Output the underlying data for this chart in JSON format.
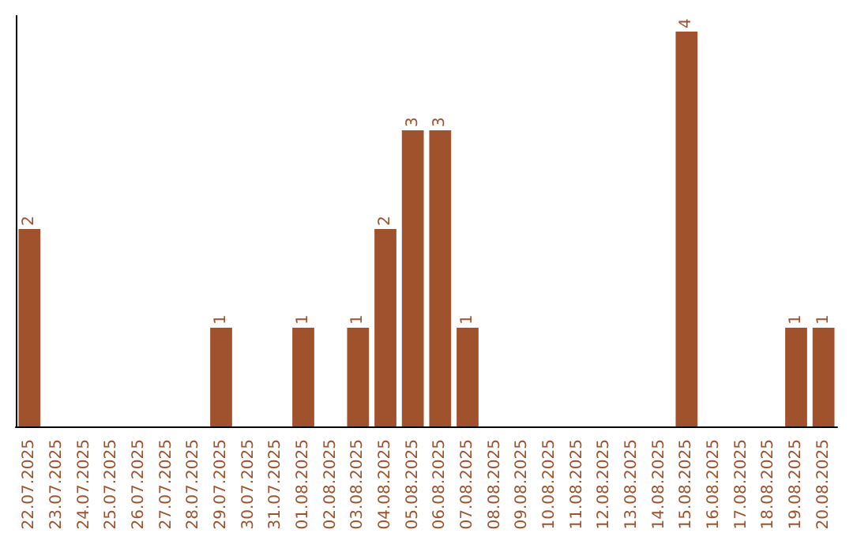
{
  "chart_data": {
    "type": "bar",
    "categories": [
      "22.07.2025",
      "23.07.2025",
      "24.07.2025",
      "25.07.2025",
      "26.07.2025",
      "27.07.2025",
      "28.07.2025",
      "29.07.2025",
      "30.07.2025",
      "31.07.2025",
      "01.08.2025",
      "02.08.2025",
      "03.08.2025",
      "04.08.2025",
      "05.08.2025",
      "06.08.2025",
      "07.08.2025",
      "08.08.2025",
      "09.08.2025",
      "10.08.2025",
      "11.08.2025",
      "12.08.2025",
      "13.08.2025",
      "14.08.2025",
      "15.08.2025",
      "16.08.2025",
      "17.08.2025",
      "18.08.2025",
      "19.08.2025",
      "20.08.2025"
    ],
    "values": [
      2,
      0,
      0,
      0,
      0,
      0,
      0,
      1,
      0,
      0,
      1,
      0,
      1,
      2,
      3,
      3,
      1,
      0,
      0,
      0,
      0,
      0,
      0,
      0,
      4,
      0,
      0,
      0,
      1,
      1
    ],
    "value_labels": [
      "2",
      null,
      null,
      null,
      null,
      null,
      null,
      "1",
      null,
      null,
      "1",
      null,
      "1",
      "2",
      "3",
      "3",
      "1",
      null,
      null,
      null,
      null,
      null,
      null,
      null,
      "4",
      null,
      null,
      null,
      "1",
      "1"
    ],
    "color": "#a0522d",
    "tick_labels": "x"
  }
}
